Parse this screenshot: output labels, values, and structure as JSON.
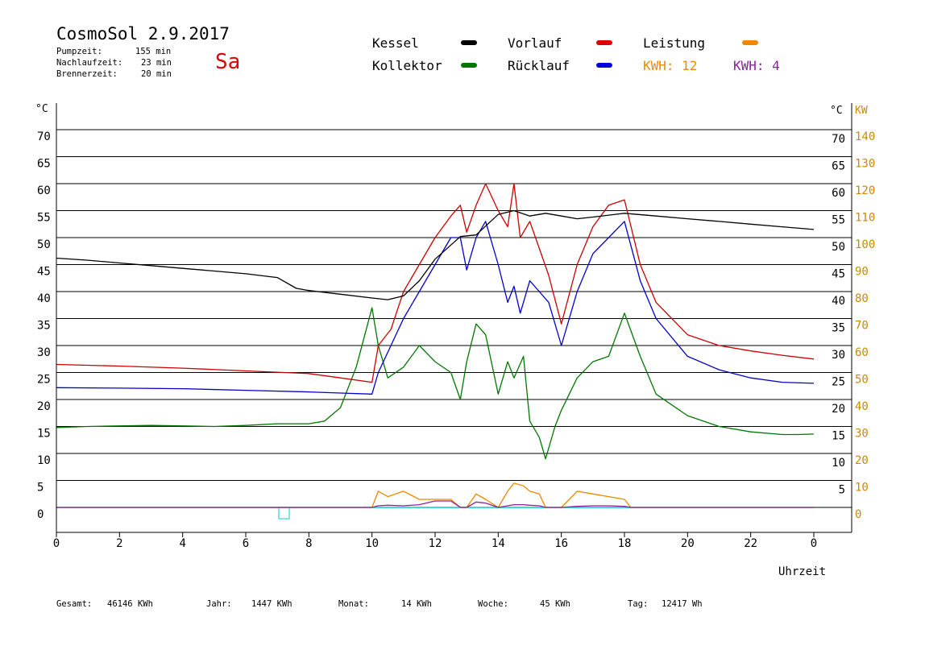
{
  "header": {
    "title": "CosmoSol 2.9.2017",
    "day": "Sa",
    "stats": [
      {
        "label": "Pumpzeit:",
        "value": "155 min"
      },
      {
        "label": "Nachlaufzeit:",
        "value": "23 min"
      },
      {
        "label": "Brennerzeit:",
        "value": "20 min"
      }
    ]
  },
  "legend": {
    "kessel": "Kessel",
    "kollektor": "Kollektor",
    "vorlauf": "Vorlauf",
    "ruecklauf": "Rücklauf",
    "leistung": "Leistung",
    "kwh1": "KWH: 12",
    "kwh2": "KWH: 4"
  },
  "colors": {
    "kessel": "#000000",
    "kollektor": "#007700",
    "vorlauf": "#cc0000",
    "ruecklauf": "#0000cc",
    "leistung": "#ee8800",
    "kwh2": "#882299",
    "baseline": "#00cccc",
    "tick_kw": "#cc8800"
  },
  "footer": [
    {
      "label": "Gesamt:",
      "value": "46146 KWh"
    },
    {
      "label": "Jahr:",
      "value": "1447 KWh"
    },
    {
      "label": "Monat:",
      "value": "14 KWh"
    },
    {
      "label": "Woche:",
      "value": "45 KWh"
    },
    {
      "label": "Tag:",
      "value": "12417 Wh"
    }
  ],
  "chart_data": {
    "type": "line",
    "ylabel_left": "°C",
    "ylabel_right": "°C",
    "ylabel_right2": "KW",
    "xlabel": "Uhrzeit",
    "xlim": [
      0,
      24
    ],
    "ylim": [
      -5,
      75
    ],
    "y_ticks": [
      0,
      5,
      10,
      15,
      20,
      25,
      30,
      35,
      40,
      45,
      50,
      55,
      60,
      65,
      70
    ],
    "y_ticks_right": [
      5,
      10,
      15,
      20,
      25,
      30,
      35,
      40,
      45,
      50,
      55,
      60,
      65,
      70
    ],
    "kw_ticks": [
      0,
      10,
      20,
      30,
      40,
      50,
      60,
      70,
      80,
      90,
      100,
      110,
      120,
      130,
      140
    ],
    "x_tick_labels": [
      "0",
      "2",
      "4",
      "6",
      "8",
      "10",
      "12",
      "14",
      "16",
      "18",
      "20",
      "22",
      "0"
    ],
    "grid": true,
    "series": [
      {
        "name": "Kessel",
        "x": [
          0,
          1,
          2,
          3,
          4,
          5,
          6,
          7,
          7.6,
          8,
          9,
          10,
          10.5,
          11,
          11.5,
          12,
          12.8,
          13.3,
          14,
          14.5,
          15,
          15.5,
          16,
          16.5,
          17,
          18,
          19,
          20,
          21,
          22,
          23,
          24
        ],
        "values": [
          46.2,
          45.8,
          45.3,
          44.8,
          44.3,
          43.8,
          43.3,
          42.6,
          40.6,
          40.2,
          39.5,
          38.8,
          38.5,
          39.2,
          42,
          46,
          50.2,
          50.5,
          54.3,
          55,
          54,
          54.5,
          54,
          53.5,
          53.8,
          54.5,
          54,
          53.5,
          53,
          52.5,
          52,
          51.5
        ]
      },
      {
        "name": "Vorlauf",
        "x": [
          0,
          2,
          4,
          6,
          8,
          9,
          10,
          10.2,
          10.6,
          11,
          11.5,
          12,
          12.5,
          12.8,
          13,
          13.3,
          13.6,
          14,
          14.3,
          14.5,
          14.7,
          15,
          15.3,
          15.6,
          16,
          16.5,
          17,
          17.5,
          18,
          18.5,
          19,
          20,
          21,
          22,
          23,
          24
        ],
        "values": [
          26.5,
          26.2,
          25.8,
          25.3,
          24.8,
          24,
          23.2,
          30,
          33,
          40,
          45,
          50,
          54,
          56,
          51,
          56,
          60,
          55,
          52,
          60,
          50,
          53,
          48,
          43,
          34,
          45,
          52,
          56,
          57,
          45,
          38,
          32,
          30,
          29,
          28.2,
          27.5
        ]
      },
      {
        "name": "Rücklauf",
        "x": [
          0,
          2,
          4,
          6,
          8,
          9,
          10,
          10.2,
          10.6,
          11,
          11.5,
          12,
          12.5,
          12.8,
          13,
          13.3,
          13.6,
          14,
          14.3,
          14.5,
          14.7,
          15,
          15.3,
          15.6,
          16,
          16.5,
          17,
          17.5,
          18,
          18.5,
          19,
          20,
          21,
          22,
          23,
          24
        ],
        "values": [
          22.2,
          22.1,
          22,
          21.7,
          21.4,
          21.2,
          21,
          25,
          30,
          35,
          40,
          45,
          50,
          50,
          44,
          50,
          53,
          45,
          38,
          41,
          36,
          42,
          40,
          38,
          30,
          40,
          47,
          50,
          53,
          42,
          35,
          28,
          25.5,
          24,
          23.2,
          23
        ]
      },
      {
        "name": "Kollektor",
        "x": [
          0,
          1,
          2,
          3,
          4,
          5,
          6,
          7,
          8,
          8.5,
          9,
          9.5,
          10,
          10.2,
          10.5,
          11,
          11.5,
          12,
          12.5,
          12.8,
          13,
          13.3,
          13.6,
          14,
          14.3,
          14.5,
          14.8,
          15,
          15.3,
          15.5,
          15.8,
          16,
          16.5,
          17,
          17.5,
          18,
          18.5,
          19,
          20,
          21,
          22,
          23,
          23.5,
          24
        ],
        "values": [
          14.8,
          15,
          15.1,
          15.2,
          15.1,
          15,
          15.2,
          15.5,
          15.5,
          16,
          18.5,
          26,
          37,
          30,
          24,
          26,
          30,
          27,
          25,
          20,
          27,
          34,
          32,
          21,
          27,
          24,
          28,
          16,
          13,
          9,
          15,
          18,
          24,
          27,
          28,
          36,
          28,
          21,
          17,
          15,
          14,
          13.5,
          13.5,
          13.6
        ]
      },
      {
        "name": "Leistung",
        "x": [
          0,
          10,
          10.2,
          10.5,
          11,
          11.5,
          12,
          12.5,
          12.8,
          13,
          13.3,
          13.6,
          14,
          14.3,
          14.5,
          14.8,
          15,
          15.3,
          15.5,
          16,
          16.5,
          17,
          17.5,
          18,
          18.2,
          24
        ],
        "values": [
          0,
          0,
          3,
          2,
          3,
          1.5,
          1.5,
          1.5,
          0,
          0,
          2.5,
          1.5,
          0,
          3,
          4.5,
          4,
          3,
          2.5,
          0,
          0,
          3,
          2.5,
          2,
          1.5,
          0,
          0
        ]
      },
      {
        "name": "KWH: 4",
        "x": [
          0,
          10,
          10.2,
          10.5,
          11,
          11.5,
          12,
          12.5,
          12.8,
          13,
          13.3,
          13.6,
          14,
          14.3,
          14.5,
          14.8,
          15,
          15.3,
          15.5,
          16,
          16.5,
          17,
          17.5,
          18,
          18.2,
          24
        ],
        "values": [
          0,
          0,
          0.3,
          0.4,
          0.3,
          0.5,
          1.2,
          1.2,
          0,
          0,
          1,
          0.8,
          0,
          0.3,
          0.5,
          0.5,
          0.4,
          0.3,
          0,
          0,
          0.2,
          0.3,
          0.3,
          0.2,
          0,
          0
        ]
      }
    ]
  }
}
